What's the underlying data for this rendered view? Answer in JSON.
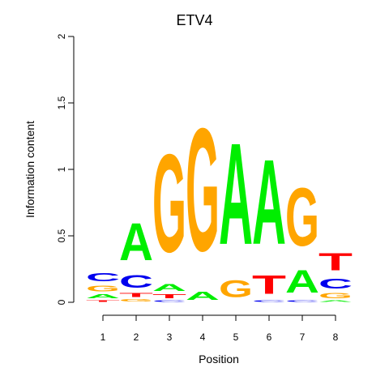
{
  "chart_data": {
    "type": "sequence-logo",
    "title": "ETV4",
    "xlabel": "Position",
    "ylabel": "Information content",
    "ylim": [
      0,
      2
    ],
    "y_ticks": [
      "0",
      "0.5",
      "1",
      "1.5",
      "2"
    ],
    "positions": [
      "1",
      "2",
      "3",
      "4",
      "5",
      "6",
      "7",
      "8"
    ],
    "colors": {
      "A": "#00ee00",
      "C": "#0000ee",
      "G": "#ffa500",
      "T": "#ff0000"
    },
    "stacks": [
      [
        {
          "base": "T",
          "height": 0.02
        },
        {
          "base": "A",
          "height": 0.05
        },
        {
          "base": "G",
          "height": 0.07
        },
        {
          "base": "C",
          "height": 0.1
        }
      ],
      [
        {
          "base": "G",
          "height": 0.03
        },
        {
          "base": "T",
          "height": 0.05
        },
        {
          "base": "C",
          "height": 0.15
        },
        {
          "base": "A",
          "height": 0.45
        }
      ],
      [
        {
          "base": "C",
          "height": 0.02
        },
        {
          "base": "T",
          "height": 0.05
        },
        {
          "base": "A",
          "height": 0.08
        },
        {
          "base": "G",
          "height": 1.18
        }
      ],
      [
        {
          "base": "A",
          "height": 0.1
        },
        {
          "base": "G",
          "height": 1.48
        }
      ],
      [
        {
          "base": "G",
          "height": 0.2
        },
        {
          "base": "A",
          "height": 1.22
        }
      ],
      [
        {
          "base": "C",
          "height": 0.02
        },
        {
          "base": "T",
          "height": 0.22
        },
        {
          "base": "A",
          "height": 1.02
        }
      ],
      [
        {
          "base": "C",
          "height": 0.02
        },
        {
          "base": "A",
          "height": 0.27
        },
        {
          "base": "G",
          "height": 0.7
        }
      ],
      [
        {
          "base": "A",
          "height": 0.02
        },
        {
          "base": "G",
          "height": 0.06
        },
        {
          "base": "C",
          "height": 0.12
        },
        {
          "base": "T",
          "height": 0.21
        }
      ]
    ]
  }
}
